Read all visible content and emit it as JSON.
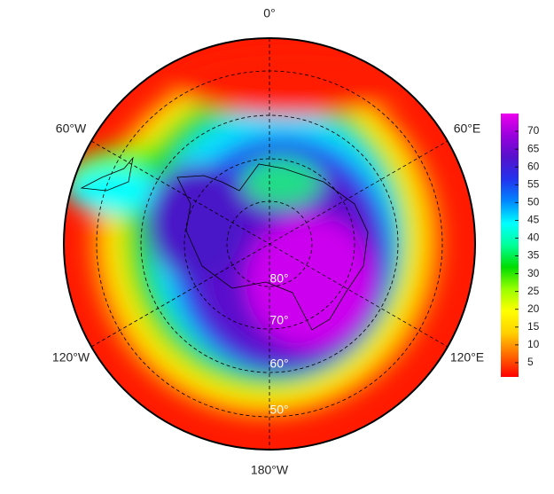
{
  "map": {
    "longitude_labels": [
      "0°",
      "60°E",
      "120°E",
      "180°W",
      "120°W",
      "60°W"
    ],
    "latitude_labels": [
      "80°",
      "70°",
      "60°",
      "50°"
    ]
  },
  "colorbar": {
    "lim": [
      1,
      75
    ],
    "ticks": [
      5,
      10,
      15,
      20,
      25,
      30,
      35,
      40,
      45,
      50,
      55,
      60,
      65,
      70
    ],
    "colors": [
      "#ff0000",
      "#ff6a00",
      "#ffd000",
      "#ffff00",
      "#99ff00",
      "#00dd00",
      "#00ff99",
      "#00ffff",
      "#0088ff",
      "#2233ee",
      "#5511cc",
      "#9900dd",
      "#ee00ee"
    ]
  }
}
